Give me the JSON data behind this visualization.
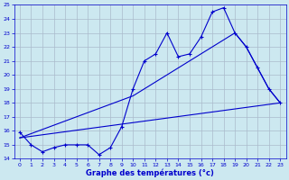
{
  "xlabel": "Graphe des températures (°c)",
  "xlim": [
    -0.5,
    23.5
  ],
  "ylim": [
    14,
    25
  ],
  "xticks": [
    0,
    1,
    2,
    3,
    4,
    5,
    6,
    7,
    8,
    9,
    10,
    11,
    12,
    13,
    14,
    15,
    16,
    17,
    18,
    19,
    20,
    21,
    22,
    23
  ],
  "yticks": [
    14,
    15,
    16,
    17,
    18,
    19,
    20,
    21,
    22,
    23,
    24,
    25
  ],
  "bg_color": "#cce8f0",
  "line_color": "#0000cc",
  "grid_color": "#aabbcc",
  "series1_x": [
    0,
    1,
    2,
    3,
    4,
    5,
    6,
    7,
    8,
    9,
    10,
    11,
    12,
    13,
    14,
    15,
    16,
    17,
    18,
    19,
    20,
    21,
    22,
    23
  ],
  "series1_y": [
    15.9,
    15.0,
    14.5,
    14.8,
    15.0,
    15.0,
    15.0,
    14.3,
    14.8,
    16.3,
    19.0,
    21.0,
    21.5,
    23.0,
    21.3,
    21.5,
    22.7,
    24.5,
    24.8,
    23.0,
    22.0,
    20.5,
    19.0,
    18.0
  ],
  "series2_x": [
    0,
    23
  ],
  "series2_y": [
    15.5,
    18.0
  ],
  "series3_x": [
    0,
    10,
    19,
    20,
    21,
    22,
    23
  ],
  "series3_y": [
    15.5,
    18.5,
    23.0,
    22.0,
    20.5,
    19.0,
    18.0
  ]
}
